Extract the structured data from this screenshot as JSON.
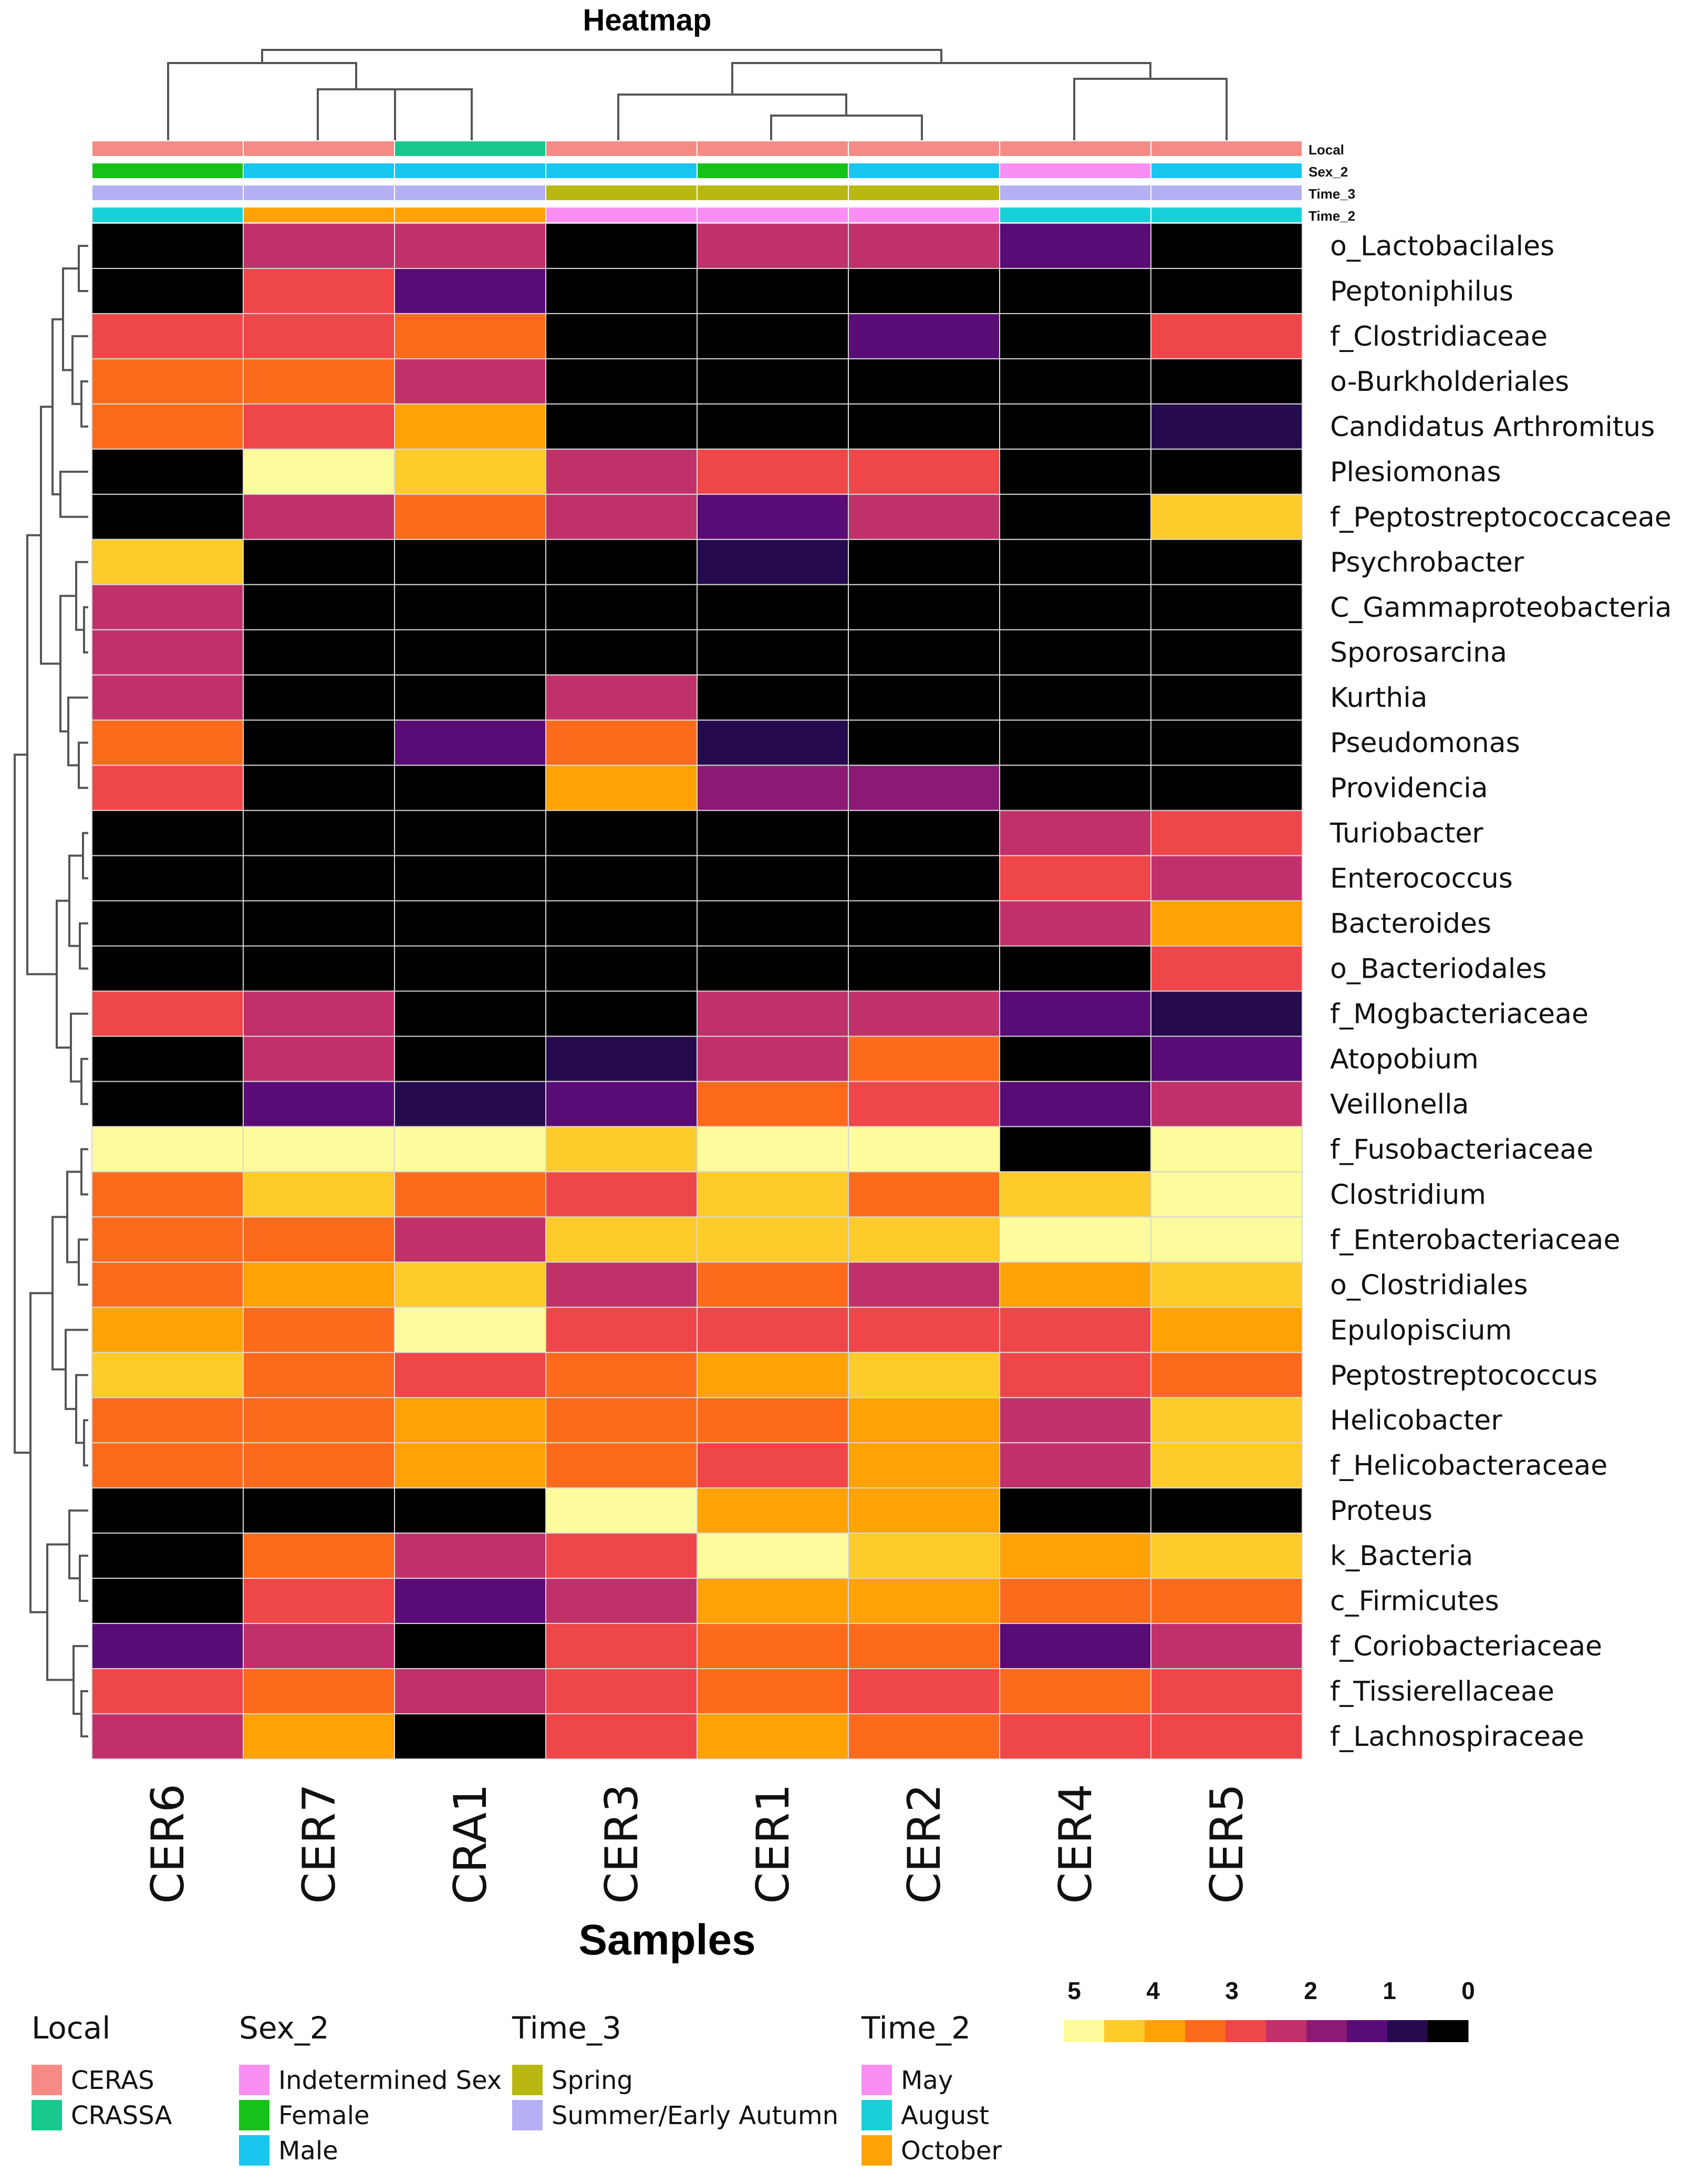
{
  "chart_data": {
    "type": "heatmap",
    "title": "Heatmap",
    "xlabel": "Samples",
    "columns": [
      "CER6",
      "CER7",
      "CRA1",
      "CER3",
      "CER1",
      "CER2",
      "CER4",
      "CER5"
    ],
    "rows": [
      "o_Lactobacilales",
      "Peptoniphilus",
      "f_Clostridiaceae",
      "o-Burkholderiales",
      "Candidatus Arthromitus",
      "Plesiomonas",
      "f_Peptostreptococcaceae",
      "Psychrobacter",
      "C_Gammaproteobacteria",
      "Sporosarcina",
      "Kurthia",
      "Pseudomonas",
      "Providencia",
      "Turiobacter",
      "Enterococcus",
      "Bacteroides",
      "o_Bacteriodales",
      "f_Mogbacteriaceae",
      "Atopobium",
      "Veillonella",
      "f_Fusobacteriaceae",
      "Clostridium",
      "f_Enterobacteriaceae",
      "o_Clostridiales",
      "Epulopiscium",
      "Peptostreptococcus",
      "Helicobacter",
      "f_Helicobacteraceae",
      "Proteus",
      "k_Bacteria",
      "c_Firmicutes",
      "f_Coriobacteriaceae",
      "f_Tissierellaceae",
      "f_Lachnospiraceae"
    ],
    "values": [
      [
        0,
        2.0,
        2.5,
        0,
        2.0,
        2.0,
        1.2,
        0
      ],
      [
        0,
        3.0,
        1.0,
        0,
        0,
        0,
        0,
        0
      ],
      [
        3.0,
        3.0,
        3.5,
        0,
        0,
        1.0,
        0,
        3.0
      ],
      [
        3.5,
        3.5,
        2.5,
        0,
        0,
        0,
        0,
        0
      ],
      [
        3.5,
        3.0,
        4.0,
        0,
        0,
        0,
        0,
        0.5
      ],
      [
        0,
        5.0,
        4.5,
        2.5,
        3.0,
        3.0,
        0,
        0
      ],
      [
        0,
        2.5,
        3.5,
        2.0,
        1.0,
        2.0,
        0,
        4.5
      ],
      [
        4.5,
        0,
        0,
        0,
        0.5,
        0,
        0,
        0
      ],
      [
        2.5,
        0,
        0,
        0,
        0,
        0,
        0,
        0
      ],
      [
        2.5,
        0,
        0,
        0,
        0,
        0,
        0,
        0
      ],
      [
        2.0,
        0,
        0,
        2.5,
        0,
        0,
        0,
        0
      ],
      [
        3.5,
        0,
        1.0,
        3.5,
        0.5,
        0,
        0,
        0
      ],
      [
        3.0,
        0,
        0,
        4.0,
        1.5,
        1.5,
        0,
        0
      ],
      [
        0,
        0,
        0,
        0,
        0,
        0,
        2.5,
        3.0
      ],
      [
        0,
        0,
        0,
        0,
        0,
        0,
        3.0,
        2.5
      ],
      [
        0,
        0,
        0,
        0,
        0,
        0,
        2.0,
        4.0
      ],
      [
        0,
        0,
        0,
        0,
        0,
        0,
        0,
        3.0
      ],
      [
        3.0,
        2.0,
        0,
        0,
        2.5,
        2.5,
        1.2,
        0.5
      ],
      [
        0,
        2.0,
        0,
        0.5,
        2.5,
        3.5,
        0,
        1.0
      ],
      [
        0,
        1.2,
        0.5,
        1.2,
        3.5,
        3.0,
        1.2,
        2.5
      ],
      [
        5.0,
        5.0,
        5.0,
        4.5,
        5.0,
        5.0,
        0,
        5.0
      ],
      [
        3.5,
        4.5,
        3.5,
        3.0,
        4.5,
        3.5,
        4.5,
        5.0
      ],
      [
        3.5,
        3.5,
        2.5,
        4.5,
        4.5,
        4.5,
        5.0,
        5.0
      ],
      [
        3.5,
        4.0,
        4.5,
        2.5,
        3.5,
        2.5,
        4.0,
        4.5
      ],
      [
        4.0,
        3.5,
        5.0,
        3.0,
        3.0,
        3.0,
        3.0,
        4.0
      ],
      [
        4.5,
        3.5,
        3.0,
        3.5,
        4.0,
        4.5,
        3.0,
        3.5
      ],
      [
        3.5,
        3.5,
        4.0,
        3.5,
        3.5,
        4.0,
        2.5,
        4.5
      ],
      [
        3.5,
        3.5,
        4.0,
        3.5,
        3.0,
        4.0,
        2.0,
        4.5
      ],
      [
        0,
        0,
        0,
        5.0,
        4.0,
        4.0,
        0,
        0
      ],
      [
        0,
        3.5,
        2.0,
        3.0,
        5.0,
        4.5,
        4.0,
        4.5
      ],
      [
        0,
        3.0,
        1.0,
        2.5,
        4.0,
        4.0,
        3.5,
        3.5
      ],
      [
        1.2,
        2.5,
        0,
        3.0,
        3.5,
        3.5,
        1.0,
        2.0
      ],
      [
        3.0,
        3.5,
        2.0,
        3.0,
        3.5,
        3.0,
        3.5,
        3.0
      ],
      [
        2.0,
        4.0,
        0,
        3.0,
        4.0,
        3.5,
        3.0,
        3.0
      ]
    ],
    "color_scale": {
      "range": [
        0,
        5
      ],
      "tick_labels": [
        "5",
        "4",
        "3",
        "2",
        "1",
        "0"
      ],
      "colors": [
        "#fcfc9c",
        "#fdcb2a",
        "#fea206",
        "#fc6b1c",
        "#ef4649",
        "#c0316a",
        "#8c1a75",
        "#5a0c76",
        "#250b4d",
        "#000000"
      ]
    },
    "annotation_tracks": [
      {
        "name": "Local",
        "values": [
          "CERAS",
          "CERAS",
          "CRASSA",
          "CERAS",
          "CERAS",
          "CERAS",
          "CERAS",
          "CERAS"
        ]
      },
      {
        "name": "Sex_2",
        "values": [
          "Female",
          "Male",
          "Male",
          "Male",
          "Female",
          "Male",
          "Indetermined Sex",
          "Male"
        ]
      },
      {
        "name": "Time_3",
        "values": [
          "Summer/Early Autumn",
          "Summer/Early Autumn",
          "Summer/Early Autumn",
          "Spring",
          "Spring",
          "Spring",
          "Summer/Early Autumn",
          "Summer/Early Autumn"
        ]
      },
      {
        "name": "Time_2",
        "values": [
          "August",
          "October",
          "October",
          "May",
          "May",
          "May",
          "August",
          "August"
        ]
      }
    ],
    "legend_groups": [
      {
        "title": "Local",
        "items": [
          {
            "label": "CERAS",
            "color": "#f58b84"
          },
          {
            "label": "CRASSA",
            "color": "#17c98e"
          }
        ]
      },
      {
        "title": "Sex_2",
        "items": [
          {
            "label": "Indetermined Sex",
            "color": "#f98ff2"
          },
          {
            "label": "Female",
            "color": "#16c21a"
          },
          {
            "label": "Male",
            "color": "#18c6ee"
          }
        ]
      },
      {
        "title": "Time_3",
        "items": [
          {
            "label": "Spring",
            "color": "#b8b810"
          },
          {
            "label": "Summer/Early Autumn",
            "color": "#b3b0f4"
          }
        ]
      },
      {
        "title": "Time_2",
        "items": [
          {
            "label": "May",
            "color": "#f98ff2"
          },
          {
            "label": "August",
            "color": "#18d0d8"
          },
          {
            "label": "October",
            "color": "#fea206"
          }
        ]
      }
    ],
    "legend_placement": "bottom",
    "row_dendrogram": "left",
    "column_dendrogram": "top"
  }
}
